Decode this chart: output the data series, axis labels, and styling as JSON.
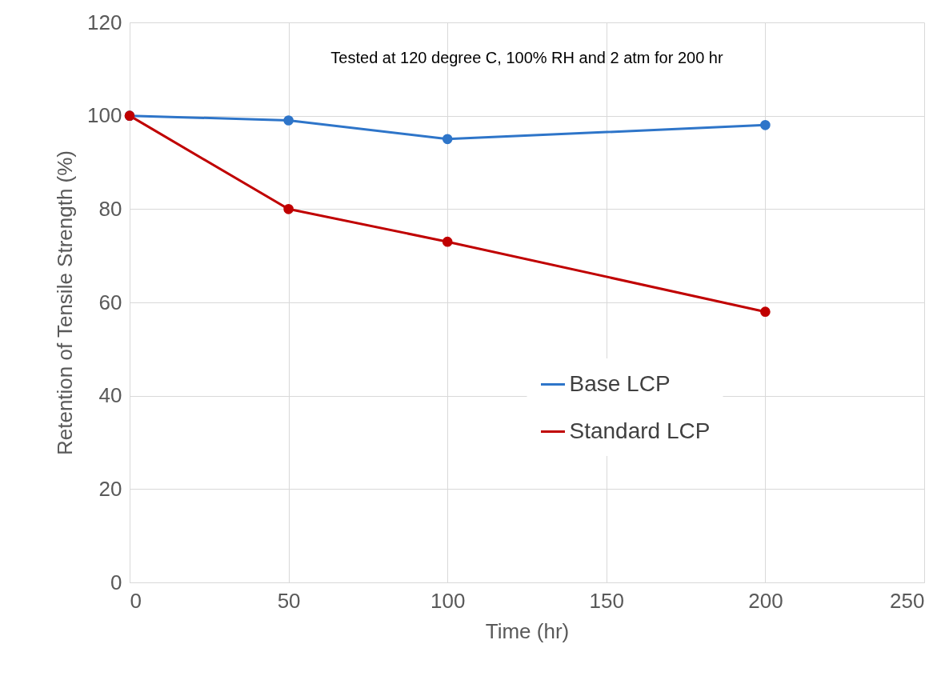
{
  "chart_data": {
    "type": "line",
    "xlabel": "Time (hr)",
    "ylabel": "Retention of Tensile Strength  (%)",
    "annotations": [
      "Tested at 120 degree  C, 100% RH and 2 atm for 200 hr"
    ],
    "x": [
      0,
      50,
      100,
      200
    ],
    "series": [
      {
        "name": "Base LCP",
        "color": "#2e75c9",
        "values": [
          100,
          99,
          95,
          98
        ]
      },
      {
        "name": "Standard LCP",
        "color": "#c00000",
        "values": [
          100,
          80,
          73,
          58
        ]
      }
    ],
    "xlim": [
      0,
      250
    ],
    "xticks": [
      0,
      50,
      100,
      150,
      200,
      250
    ],
    "ylim": [
      0,
      120
    ],
    "yticks": [
      0,
      20,
      40,
      60,
      80,
      100,
      120
    ],
    "grid": true,
    "legend": "right",
    "marker": "circle",
    "line_style": "solid"
  }
}
